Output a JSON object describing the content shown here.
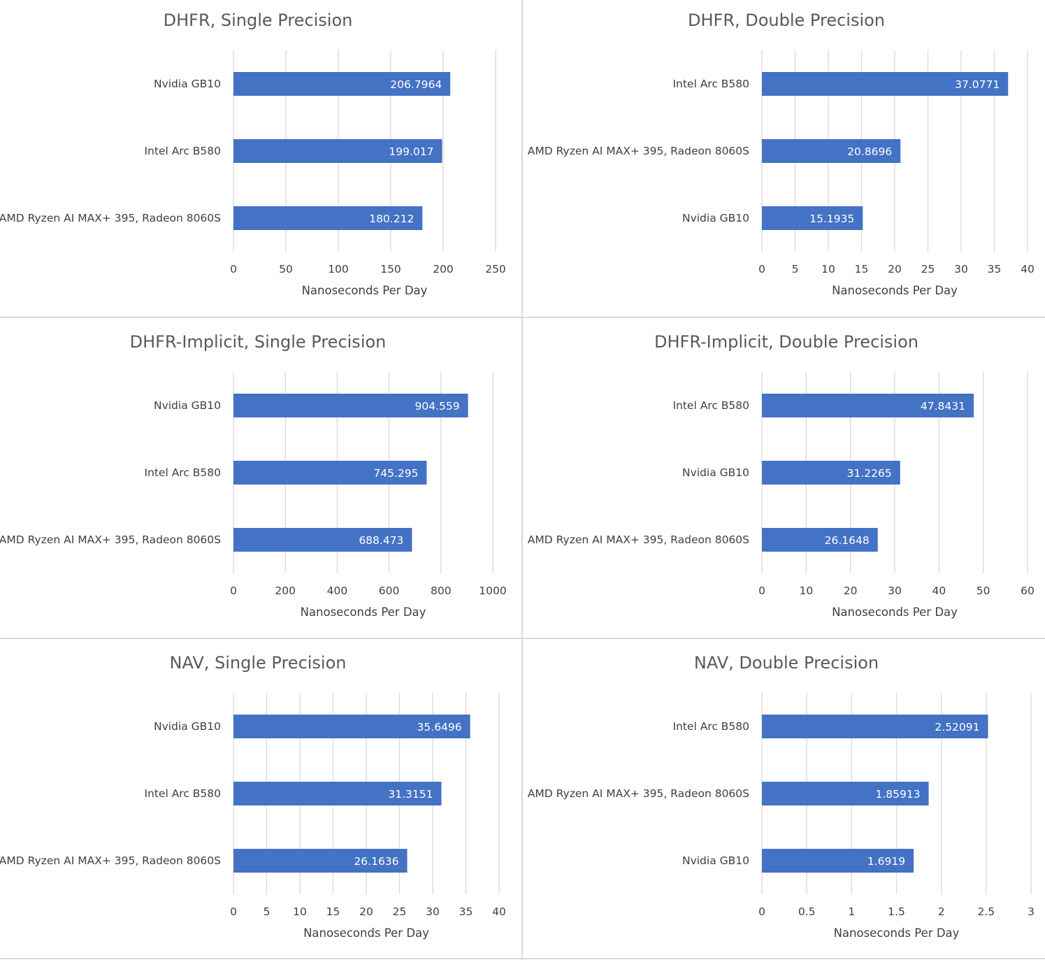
{
  "chart_data": [
    {
      "type": "bar",
      "orientation": "horizontal",
      "title": "DHFR, Single Precision",
      "xlabel": "Nanoseconds Per Day",
      "categories": [
        "Nvidia GB10",
        "Intel Arc B580",
        "AMD Ryzen AI MAX+ 395, Radeon 8060S"
      ],
      "values": [
        206.7964,
        199.017,
        180.212
      ],
      "value_labels": [
        "206.7964",
        "199.017",
        "180.212"
      ],
      "xlim": [
        0,
        250
      ],
      "ticks": [
        "0",
        "50",
        "100",
        "150",
        "200",
        "250"
      ],
      "grid": true,
      "color": "#4472c4"
    },
    {
      "type": "bar",
      "orientation": "horizontal",
      "title": "DHFR, Double Precision",
      "xlabel": "Nanoseconds Per Day",
      "categories": [
        "Intel Arc B580",
        "AMD Ryzen AI MAX+ 395, Radeon 8060S",
        "Nvidia GB10"
      ],
      "values": [
        37.0771,
        20.8696,
        15.1935
      ],
      "value_labels": [
        "37.0771",
        "20.8696",
        "15.1935"
      ],
      "xlim": [
        0,
        40
      ],
      "ticks": [
        "0",
        "5",
        "10",
        "15",
        "20",
        "25",
        "30",
        "35",
        "40"
      ],
      "grid": true,
      "color": "#4472c4"
    },
    {
      "type": "bar",
      "orientation": "horizontal",
      "title": "DHFR-Implicit, Single Precision",
      "xlabel": "Nanoseconds Per Day",
      "categories": [
        "Nvidia GB10",
        "Intel Arc B580",
        "AMD Ryzen AI MAX+ 395, Radeon 8060S"
      ],
      "values": [
        904.559,
        745.295,
        688.473
      ],
      "value_labels": [
        "904.559",
        "745.295",
        "688.473"
      ],
      "xlim": [
        0,
        1000
      ],
      "ticks": [
        "0",
        "200",
        "400",
        "600",
        "800",
        "1000"
      ],
      "grid": true,
      "color": "#4472c4"
    },
    {
      "type": "bar",
      "orientation": "horizontal",
      "title": "DHFR-Implicit, Double Precision",
      "xlabel": "Nanoseconds Per Day",
      "categories": [
        "Intel Arc B580",
        "Nvidia GB10",
        "AMD Ryzen AI MAX+ 395, Radeon 8060S"
      ],
      "values": [
        47.8431,
        31.2265,
        26.1648
      ],
      "value_labels": [
        "47.8431",
        "31.2265",
        "26.1648"
      ],
      "xlim": [
        0,
        60
      ],
      "ticks": [
        "0",
        "10",
        "20",
        "30",
        "40",
        "50",
        "60"
      ],
      "grid": true,
      "color": "#4472c4"
    },
    {
      "type": "bar",
      "orientation": "horizontal",
      "title": "NAV, Single Precision",
      "xlabel": "Nanoseconds Per Day",
      "categories": [
        "Nvidia GB10",
        "Intel Arc B580",
        "AMD Ryzen AI MAX+ 395, Radeon 8060S"
      ],
      "values": [
        35.6496,
        31.3151,
        26.1636
      ],
      "value_labels": [
        "35.6496",
        "31.3151",
        "26.1636"
      ],
      "xlim": [
        0,
        40
      ],
      "ticks": [
        "0",
        "5",
        "10",
        "15",
        "20",
        "25",
        "30",
        "35",
        "40"
      ],
      "grid": true,
      "color": "#4472c4"
    },
    {
      "type": "bar",
      "orientation": "horizontal",
      "title": "NAV, Double Precision",
      "xlabel": "Nanoseconds Per Day",
      "categories": [
        "Intel Arc B580",
        "AMD Ryzen AI MAX+ 395, Radeon 8060S",
        "Nvidia GB10"
      ],
      "values": [
        2.52091,
        1.85913,
        1.6919
      ],
      "value_labels": [
        "2.52091",
        "1.85913",
        "1.6919"
      ],
      "xlim": [
        0,
        3
      ],
      "ticks": [
        "0",
        "0.5",
        "1",
        "1.5",
        "2",
        "2.5",
        "3"
      ],
      "grid": true,
      "color": "#4472c4"
    }
  ]
}
